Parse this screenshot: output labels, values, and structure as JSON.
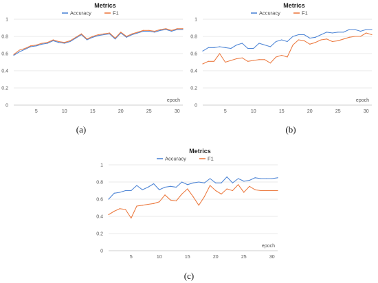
{
  "colors": {
    "accuracy": "#4f86d6",
    "f1": "#ec7c43",
    "grid": "#e3e3e3",
    "axis": "#bfbfbf"
  },
  "chart_data": [
    {
      "type": "line",
      "caption": "(a)",
      "title": "Metrics",
      "xlabel": "epoch",
      "ylabel": "",
      "xlim": [
        1,
        31
      ],
      "ylim": [
        0,
        1
      ],
      "xticks": [
        5,
        10,
        15,
        20,
        25,
        30
      ],
      "yticks": [
        0,
        0.2,
        0.4,
        0.6,
        0.8,
        1
      ],
      "ytick_labels": [
        "0",
        "0.2",
        "0.4",
        "0.6",
        "0.8",
        "1"
      ],
      "legend": "top",
      "grid": true,
      "x": [
        1,
        2,
        3,
        4,
        5,
        6,
        7,
        8,
        9,
        10,
        11,
        12,
        13,
        14,
        15,
        16,
        17,
        18,
        19,
        20,
        21,
        22,
        23,
        24,
        25,
        26,
        27,
        28,
        29,
        30,
        31
      ],
      "series": [
        {
          "name": "Accuracy",
          "color": "#4f86d6",
          "values": [
            0.58,
            0.62,
            0.65,
            0.68,
            0.69,
            0.71,
            0.72,
            0.75,
            0.73,
            0.72,
            0.74,
            0.78,
            0.82,
            0.76,
            0.79,
            0.81,
            0.82,
            0.83,
            0.77,
            0.84,
            0.79,
            0.82,
            0.84,
            0.86,
            0.86,
            0.85,
            0.87,
            0.88,
            0.86,
            0.88,
            0.88
          ]
        },
        {
          "name": "F1",
          "color": "#ec7c43",
          "values": [
            0.59,
            0.64,
            0.66,
            0.69,
            0.7,
            0.72,
            0.73,
            0.76,
            0.74,
            0.73,
            0.75,
            0.79,
            0.83,
            0.77,
            0.8,
            0.82,
            0.83,
            0.84,
            0.78,
            0.85,
            0.8,
            0.83,
            0.85,
            0.87,
            0.87,
            0.86,
            0.88,
            0.89,
            0.87,
            0.89,
            0.89
          ]
        }
      ]
    },
    {
      "type": "line",
      "caption": "(b)",
      "title": "Metrics",
      "xlabel": "epoch",
      "ylabel": "",
      "xlim": [
        1,
        31
      ],
      "ylim": [
        0,
        1
      ],
      "xticks": [
        5,
        10,
        15,
        20,
        25,
        30
      ],
      "yticks": [
        0,
        0.2,
        0.4,
        0.6,
        0.8,
        1
      ],
      "ytick_labels": [
        "0",
        "0.2",
        "0.4",
        "0.6",
        "0.8",
        "1"
      ],
      "legend": "top",
      "grid": true,
      "x": [
        1,
        2,
        3,
        4,
        5,
        6,
        7,
        8,
        9,
        10,
        11,
        12,
        13,
        14,
        15,
        16,
        17,
        18,
        19,
        20,
        21,
        22,
        23,
        24,
        25,
        26,
        27,
        28,
        29,
        30,
        31
      ],
      "series": [
        {
          "name": "Accuracy",
          "color": "#4f86d6",
          "values": [
            0.63,
            0.67,
            0.67,
            0.68,
            0.67,
            0.66,
            0.7,
            0.72,
            0.66,
            0.66,
            0.72,
            0.7,
            0.68,
            0.74,
            0.76,
            0.74,
            0.8,
            0.82,
            0.82,
            0.78,
            0.79,
            0.82,
            0.85,
            0.84,
            0.85,
            0.85,
            0.88,
            0.88,
            0.86,
            0.88,
            0.88
          ]
        },
        {
          "name": "F1",
          "color": "#ec7c43",
          "values": [
            0.48,
            0.51,
            0.51,
            0.6,
            0.5,
            0.52,
            0.54,
            0.55,
            0.51,
            0.52,
            0.53,
            0.53,
            0.49,
            0.56,
            0.58,
            0.56,
            0.7,
            0.76,
            0.75,
            0.71,
            0.73,
            0.76,
            0.77,
            0.74,
            0.75,
            0.77,
            0.79,
            0.8,
            0.8,
            0.84,
            0.82
          ]
        }
      ]
    },
    {
      "type": "line",
      "caption": "(c)",
      "title": "Metrics",
      "xlabel": "epoch",
      "ylabel": "",
      "xlim": [
        1,
        31
      ],
      "ylim": [
        0,
        1
      ],
      "xticks": [
        5,
        10,
        15,
        20,
        25,
        30
      ],
      "yticks": [
        0,
        0.2,
        0.4,
        0.6,
        0.8,
        1
      ],
      "ytick_labels": [
        "0",
        "0.2",
        "0.4",
        "0.6",
        "0.8",
        "1"
      ],
      "legend": "top",
      "grid": true,
      "x": [
        1,
        2,
        3,
        4,
        5,
        6,
        7,
        8,
        9,
        10,
        11,
        12,
        13,
        14,
        15,
        16,
        17,
        18,
        19,
        20,
        21,
        22,
        23,
        24,
        25,
        26,
        27,
        28,
        29,
        30,
        31
      ],
      "series": [
        {
          "name": "Accuracy",
          "color": "#4f86d6",
          "values": [
            0.6,
            0.67,
            0.68,
            0.7,
            0.7,
            0.76,
            0.71,
            0.74,
            0.78,
            0.71,
            0.74,
            0.75,
            0.74,
            0.8,
            0.77,
            0.79,
            0.8,
            0.79,
            0.84,
            0.79,
            0.79,
            0.86,
            0.79,
            0.84,
            0.81,
            0.82,
            0.85,
            0.84,
            0.84,
            0.84,
            0.85
          ]
        },
        {
          "name": "F1",
          "color": "#ec7c43",
          "values": [
            0.42,
            0.46,
            0.49,
            0.48,
            0.38,
            0.52,
            0.53,
            0.54,
            0.55,
            0.57,
            0.65,
            0.59,
            0.58,
            0.66,
            0.72,
            0.63,
            0.53,
            0.63,
            0.76,
            0.7,
            0.66,
            0.72,
            0.7,
            0.77,
            0.68,
            0.75,
            0.71,
            0.7,
            0.7,
            0.7,
            0.7
          ]
        }
      ]
    }
  ]
}
